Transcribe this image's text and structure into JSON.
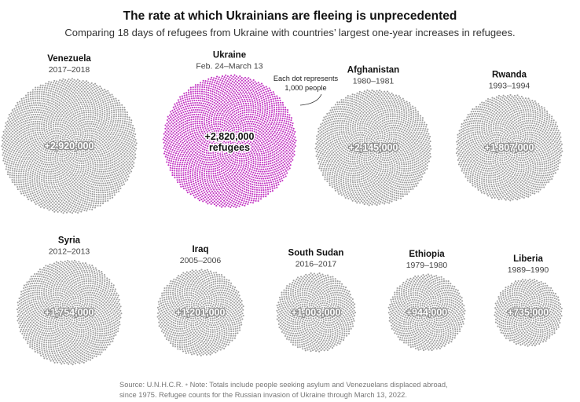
{
  "title": "The rate at which Ukrainians are fleeing is unprecedented",
  "subtitle": "Comparing 18 days of refugees from Ukraine with countries’ largest one-year increases in refugees.",
  "annotation": [
    "Each dot represents",
    "1,000 people"
  ],
  "colors": {
    "highlight": "#c233c2",
    "default": "#9e9e9e"
  },
  "chart_data": {
    "type": "dot-cluster",
    "unit": "refugees (1 dot = 1,000 people)",
    "series": [
      {
        "name": "Venezuela",
        "period": "2017–2018",
        "value": 2920000,
        "label": "+2,920,000",
        "highlight": false
      },
      {
        "name": "Ukraine",
        "period": "Feb. 24–March 13",
        "value": 2820000,
        "label": "+2,820,000",
        "sublabel": "refugees",
        "highlight": true
      },
      {
        "name": "Afghanistan",
        "period": "1980–1981",
        "value": 2145000,
        "label": "+2,145,000",
        "highlight": false
      },
      {
        "name": "Rwanda",
        "period": "1993–1994",
        "value": 1807000,
        "label": "+1,807,000",
        "highlight": false
      },
      {
        "name": "Syria",
        "period": "2012–2013",
        "value": 1754000,
        "label": "+1,754,000",
        "highlight": false
      },
      {
        "name": "Iraq",
        "period": "2005–2006",
        "value": 1201000,
        "label": "+1,201,000",
        "highlight": false
      },
      {
        "name": "South Sudan",
        "period": "2016–2017",
        "value": 1003000,
        "label": "+1,003,000",
        "highlight": false
      },
      {
        "name": "Ethiopia",
        "period": "1979–1980",
        "value": 944000,
        "label": "+944,000",
        "highlight": false
      },
      {
        "name": "Liberia",
        "period": "1989–1990",
        "value": 735000,
        "label": "+735,000",
        "highlight": false
      }
    ]
  },
  "footer": {
    "source": "Source: U.N.H.C.R.",
    "separator": "•",
    "note": "Note: Totals include people seeking asylum and Venezuelans displaced abroad, since 1975. Refugee counts for the Russian invasion of Ukraine through March 13, 2022."
  }
}
